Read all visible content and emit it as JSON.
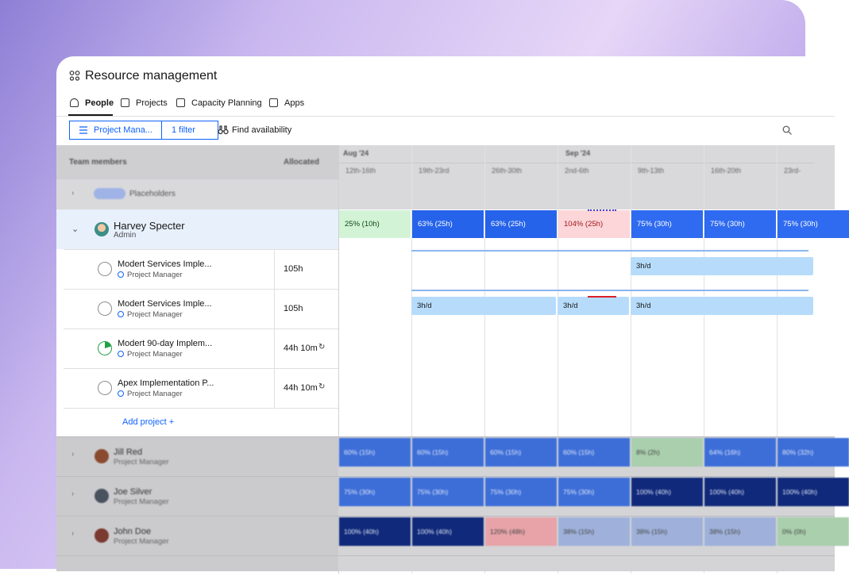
{
  "header": {
    "title": "Resource management"
  },
  "tabs": [
    "People",
    "Projects",
    "Capacity Planning",
    "Apps"
  ],
  "toolbar": {
    "view": "Project Mana...",
    "filter": "1 filter",
    "find": "Find availability"
  },
  "table": {
    "columns": [
      "Team members",
      "Allocated"
    ],
    "months": [
      "Aug '24",
      "Sep '24"
    ],
    "weeks": [
      "12th-16th",
      "19th-23rd",
      "26th-30th",
      "2nd-6th",
      "9th-13th",
      "16th-20th",
      "23rd-"
    ],
    "placeholders": "Placeholders",
    "expanded": {
      "name": "Harvey Specter",
      "role": "Admin",
      "cells": [
        "25% (10h)",
        "63% (25h)",
        "63% (25h)",
        "104% (25h)",
        "75% (30h)",
        "75% (30h)",
        "75% (30h)"
      ],
      "colors": [
        "#d3f3d6",
        "#2563eb",
        "#2563eb",
        "#fcd6d8",
        "#2f6bf0",
        "#2f6bf0",
        "#2f6bf0"
      ]
    },
    "projects": [
      {
        "name": "Modert Services Imple...",
        "role": "Project Manager",
        "allocated": "105h",
        "bars": [
          "3h/d"
        ]
      },
      {
        "name": "Modert Services Imple...",
        "role": "Project Manager",
        "allocated": "105h",
        "bars": [
          "3h/d",
          "3h/d",
          "3h/d"
        ]
      },
      {
        "name": "Modert 90-day Implem...",
        "role": "Project Manager",
        "allocated": "44h 10m",
        "bars": []
      },
      {
        "name": "Apex Implementation P...",
        "role": "Project Manager",
        "allocated": "44h 10m",
        "bars": []
      }
    ],
    "add_project": "Add project +",
    "people": [
      {
        "name": "Jill Red",
        "role": "Project Manager",
        "cells": [
          "60% (15h)",
          "60% (15h)",
          "60% (15h)",
          "60% (15h)",
          "8% (2h)",
          "64% (16h)",
          "80% (32h)"
        ],
        "colors": [
          "#3d6ed8",
          "#3d6ed8",
          "#3d6ed8",
          "#3d6ed8",
          "#a9cfac",
          "#3d6ed8",
          "#3d6ed8"
        ]
      },
      {
        "name": "Joe Silver",
        "role": "Project Manager",
        "cells": [
          "75% (30h)",
          "75% (30h)",
          "75% (30h)",
          "75% (30h)",
          "100% (40h)",
          "100% (40h)",
          "100% (40h)"
        ],
        "colors": [
          "#3d6ed8",
          "#3d6ed8",
          "#3d6ed8",
          "#3d6ed8",
          "#10297a",
          "#10297a",
          "#10297a"
        ]
      },
      {
        "name": "John Doe",
        "role": "Project Manager",
        "cells": [
          "100% (40h)",
          "100% (40h)",
          "120% (48h)",
          "38% (15h)",
          "38% (15h)",
          "38% (15h)",
          "0% (0h)"
        ],
        "colors": [
          "#10297a",
          "#10297a",
          "#e7a3a8",
          "#9fb1da",
          "#9fb1da",
          "#9fb1da",
          "#a9cfac"
        ]
      }
    ]
  }
}
